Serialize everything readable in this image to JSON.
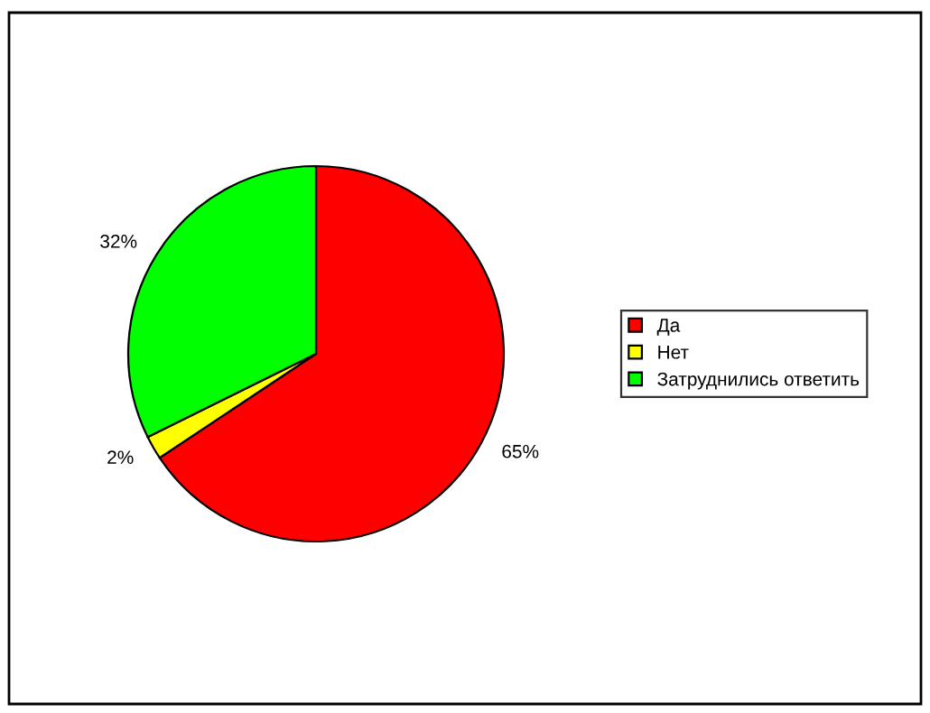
{
  "chart_data": {
    "type": "pie",
    "categories": [
      "Да",
      "Нет",
      "Затруднились ответить"
    ],
    "values": [
      65,
      2,
      32
    ],
    "colors": [
      "#ff0000",
      "#ffff00",
      "#00ff00"
    ],
    "value_labels": [
      "65%",
      "2%",
      "32%"
    ],
    "legend": "right"
  }
}
